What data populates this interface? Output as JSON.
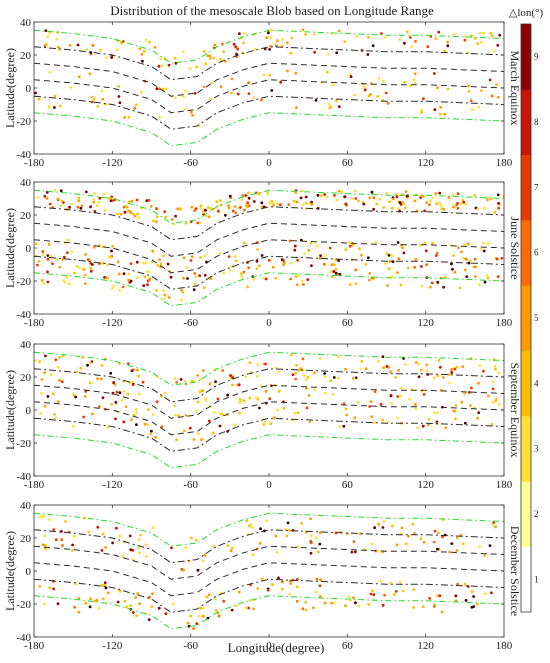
{
  "colors": {
    "colormap": [
      "#ffffff",
      "#ffff99",
      "#ffe033",
      "#ffbf00",
      "#ff9a00",
      "#ff6a00",
      "#e83a00",
      "#c81500",
      "#8c0000",
      "#3d0000"
    ],
    "guide_dark": "#2b2b2b",
    "guide_green": "#22dd22"
  },
  "chart_data": {
    "type": "scatter",
    "title": "Distribution of the mesoscale Blob based on Longitude Range",
    "xlabel": "Longitude(degree)",
    "ylabel": "Latitude(degree)",
    "xlim": [
      -180,
      180
    ],
    "ylim": [
      -40,
      40
    ],
    "xticks": [
      "-180",
      "-120",
      "-60",
      "0",
      "60",
      "120",
      "180"
    ],
    "yticks": [
      "-40",
      "-20",
      "0",
      "20",
      "40"
    ],
    "colorbar": {
      "label": "△lon(°)",
      "range": [
        0,
        9
      ],
      "ticks": [
        "1",
        "2",
        "3",
        "4",
        "5",
        "6",
        "7",
        "8",
        "9"
      ]
    },
    "panels": [
      {
        "name": "March Equinox",
        "bands": [
          [
            -20,
            5
          ],
          [
            15,
            30
          ]
        ],
        "density": 0.65,
        "high_share": 0.35
      },
      {
        "name": "June Solstice",
        "bands": [
          [
            -28,
            0
          ],
          [
            18,
            30
          ]
        ],
        "density": 1.4,
        "high_share": 0.45
      },
      {
        "name": "September Equinox",
        "bands": [
          [
            -15,
            10
          ],
          [
            12,
            28
          ]
        ],
        "density": 0.85,
        "high_share": 0.25
      },
      {
        "name": "December Solstice",
        "bands": [
          [
            -30,
            -10
          ],
          [
            5,
            28
          ]
        ],
        "density": 0.75,
        "high_share": 0.4
      }
    ],
    "guide_lines": {
      "x": [
        -180,
        -150,
        -120,
        -90,
        -75,
        -55,
        -40,
        -20,
        0,
        30,
        60,
        90,
        120,
        150,
        180
      ],
      "magnetic_equator": [
        10,
        8,
        5,
        -2,
        -10,
        -8,
        0,
        6,
        10,
        9,
        8,
        7,
        7,
        6,
        5
      ],
      "series": [
        {
          "style": "green",
          "offset": 25
        },
        {
          "style": "dashdot",
          "offset": 15
        },
        {
          "style": "dash",
          "offset": 5
        },
        {
          "style": "dash",
          "offset": -5
        },
        {
          "style": "dashdot",
          "offset": -15
        },
        {
          "style": "green",
          "offset": -25
        }
      ]
    }
  }
}
